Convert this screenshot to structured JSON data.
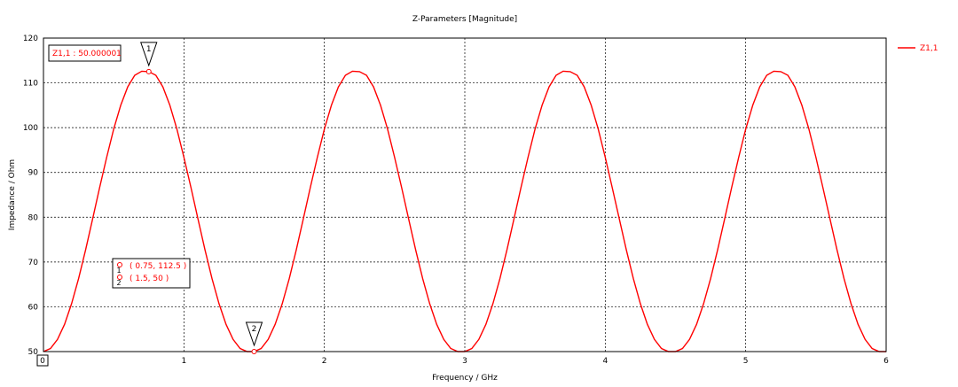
{
  "chart_data": {
    "type": "line",
    "title": "Z-Parameters [Magnitude]",
    "xlabel": "Frequency / GHz",
    "ylabel": "Impedance / Ohm",
    "xlim": [
      0,
      6
    ],
    "ylim": [
      50,
      120
    ],
    "x_ticks": [
      "0",
      "1",
      "2",
      "3",
      "4",
      "5",
      "6"
    ],
    "y_ticks": [
      "50",
      "60",
      "70",
      "80",
      "90",
      "100",
      "110",
      "120"
    ],
    "grid": true,
    "legend_position": "top-right",
    "series": [
      {
        "name": "Z1,1",
        "color": "#ff0000",
        "x": [
          0,
          0.05,
          0.1,
          0.15,
          0.2,
          0.25,
          0.3,
          0.35,
          0.4,
          0.45,
          0.5,
          0.55,
          0.6,
          0.65,
          0.7,
          0.75,
          0.8,
          0.85,
          0.9,
          0.95,
          1.0,
          1.05,
          1.1,
          1.15,
          1.2,
          1.25,
          1.3,
          1.35,
          1.4,
          1.45,
          1.5,
          1.55,
          1.6,
          1.65,
          1.7,
          1.75,
          1.8,
          1.85,
          1.9,
          1.95,
          2.0,
          2.05,
          2.1,
          2.15,
          2.2,
          2.25,
          2.3,
          2.35,
          2.4,
          2.45,
          2.5,
          2.55,
          2.6,
          2.65,
          2.7,
          2.75,
          2.8,
          2.85,
          2.9,
          2.95,
          3.0,
          3.05,
          3.1,
          3.15,
          3.2,
          3.25,
          3.3,
          3.35,
          3.4,
          3.45,
          3.5,
          3.55,
          3.6,
          3.65,
          3.7,
          3.75,
          3.8,
          3.85,
          3.9,
          3.95,
          4.0,
          4.05,
          4.1,
          4.15,
          4.2,
          4.25,
          4.3,
          4.35,
          4.4,
          4.45,
          4.5,
          4.55,
          4.6,
          4.65,
          4.7,
          4.75,
          4.8,
          4.85,
          4.9,
          4.95,
          5.0,
          5.05,
          5.1,
          5.15,
          5.2,
          5.25,
          5.3,
          5.35,
          5.4,
          5.45,
          5.5,
          5.55,
          5.6,
          5.65,
          5.7,
          5.75,
          5.8,
          5.85,
          5.9,
          5.95,
          6.0
        ],
        "values": [
          50.0,
          50.7,
          52.7,
          56.1,
          60.7,
          66.3,
          72.7,
          79.6,
          86.6,
          93.4,
          99.7,
          105.0,
          109.1,
          111.7,
          112.6,
          112.5,
          111.7,
          109.1,
          105.0,
          99.7,
          93.4,
          86.6,
          79.6,
          72.7,
          66.3,
          60.7,
          56.1,
          52.7,
          50.7,
          50.0,
          50.0,
          50.7,
          52.7,
          56.1,
          60.7,
          66.3,
          72.7,
          79.6,
          86.6,
          93.4,
          99.7,
          105.0,
          109.1,
          111.7,
          112.6,
          112.5,
          111.7,
          109.1,
          105.0,
          99.7,
          93.4,
          86.6,
          79.6,
          72.7,
          66.3,
          60.7,
          56.1,
          52.7,
          50.7,
          50.0,
          50.0,
          50.7,
          52.7,
          56.1,
          60.7,
          66.3,
          72.7,
          79.6,
          86.6,
          93.4,
          99.7,
          105.0,
          109.1,
          111.7,
          112.6,
          112.5,
          111.7,
          109.1,
          105.0,
          99.7,
          93.4,
          86.6,
          79.6,
          72.7,
          66.3,
          60.7,
          56.1,
          52.7,
          50.7,
          50.0,
          50.0,
          50.7,
          52.7,
          56.1,
          60.7,
          66.3,
          72.7,
          79.6,
          86.6,
          93.4,
          99.7,
          105.0,
          109.1,
          111.7,
          112.6,
          112.5,
          111.7,
          109.1,
          105.0,
          99.7,
          93.4,
          86.6,
          79.6,
          72.7,
          66.3,
          60.7,
          56.1,
          52.7,
          50.7,
          50.0,
          50.0
        ]
      }
    ],
    "markers": [
      {
        "label": "1",
        "x": 0.75,
        "y": 112.5,
        "readout": "( 0.75, 112.5 )"
      },
      {
        "label": "2",
        "x": 1.5,
        "y": 50,
        "readout": "( 1.5, 50 )"
      }
    ],
    "annotation": "Z1,1 : 50.000001",
    "x_cursor_label": "0"
  }
}
